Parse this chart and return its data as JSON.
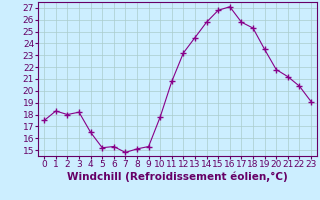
{
  "x": [
    0,
    1,
    2,
    3,
    4,
    5,
    6,
    7,
    8,
    9,
    10,
    11,
    12,
    13,
    14,
    15,
    16,
    17,
    18,
    19,
    20,
    21,
    22,
    23
  ],
  "y": [
    17.5,
    18.3,
    18.0,
    18.2,
    16.5,
    15.2,
    15.3,
    14.8,
    15.1,
    15.3,
    17.8,
    20.8,
    23.2,
    24.5,
    25.8,
    26.8,
    27.1,
    25.8,
    25.3,
    23.5,
    21.8,
    21.2,
    20.4,
    19.1
  ],
  "line_color": "#880088",
  "marker": "+",
  "marker_size": 4,
  "marker_lw": 1.0,
  "bg_color": "#cceeff",
  "grid_color": "#aacccc",
  "xlabel": "Windchill (Refroidissement éolien,°C)",
  "ylim": [
    14.5,
    27.5
  ],
  "xlim": [
    -0.5,
    23.5
  ],
  "yticks": [
    15,
    16,
    17,
    18,
    19,
    20,
    21,
    22,
    23,
    24,
    25,
    26,
    27
  ],
  "xtick_labels": [
    "0",
    "1",
    "2",
    "3",
    "4",
    "5",
    "6",
    "7",
    "8",
    "9",
    "10",
    "11",
    "12",
    "13",
    "14",
    "15",
    "16",
    "17",
    "18",
    "19",
    "20",
    "21",
    "22",
    "23"
  ],
  "axis_color": "#660066",
  "tick_color": "#660066",
  "label_color": "#660066",
  "xlabel_fontsize": 7.5,
  "tick_fontsize": 6.5,
  "line_width": 0.8
}
